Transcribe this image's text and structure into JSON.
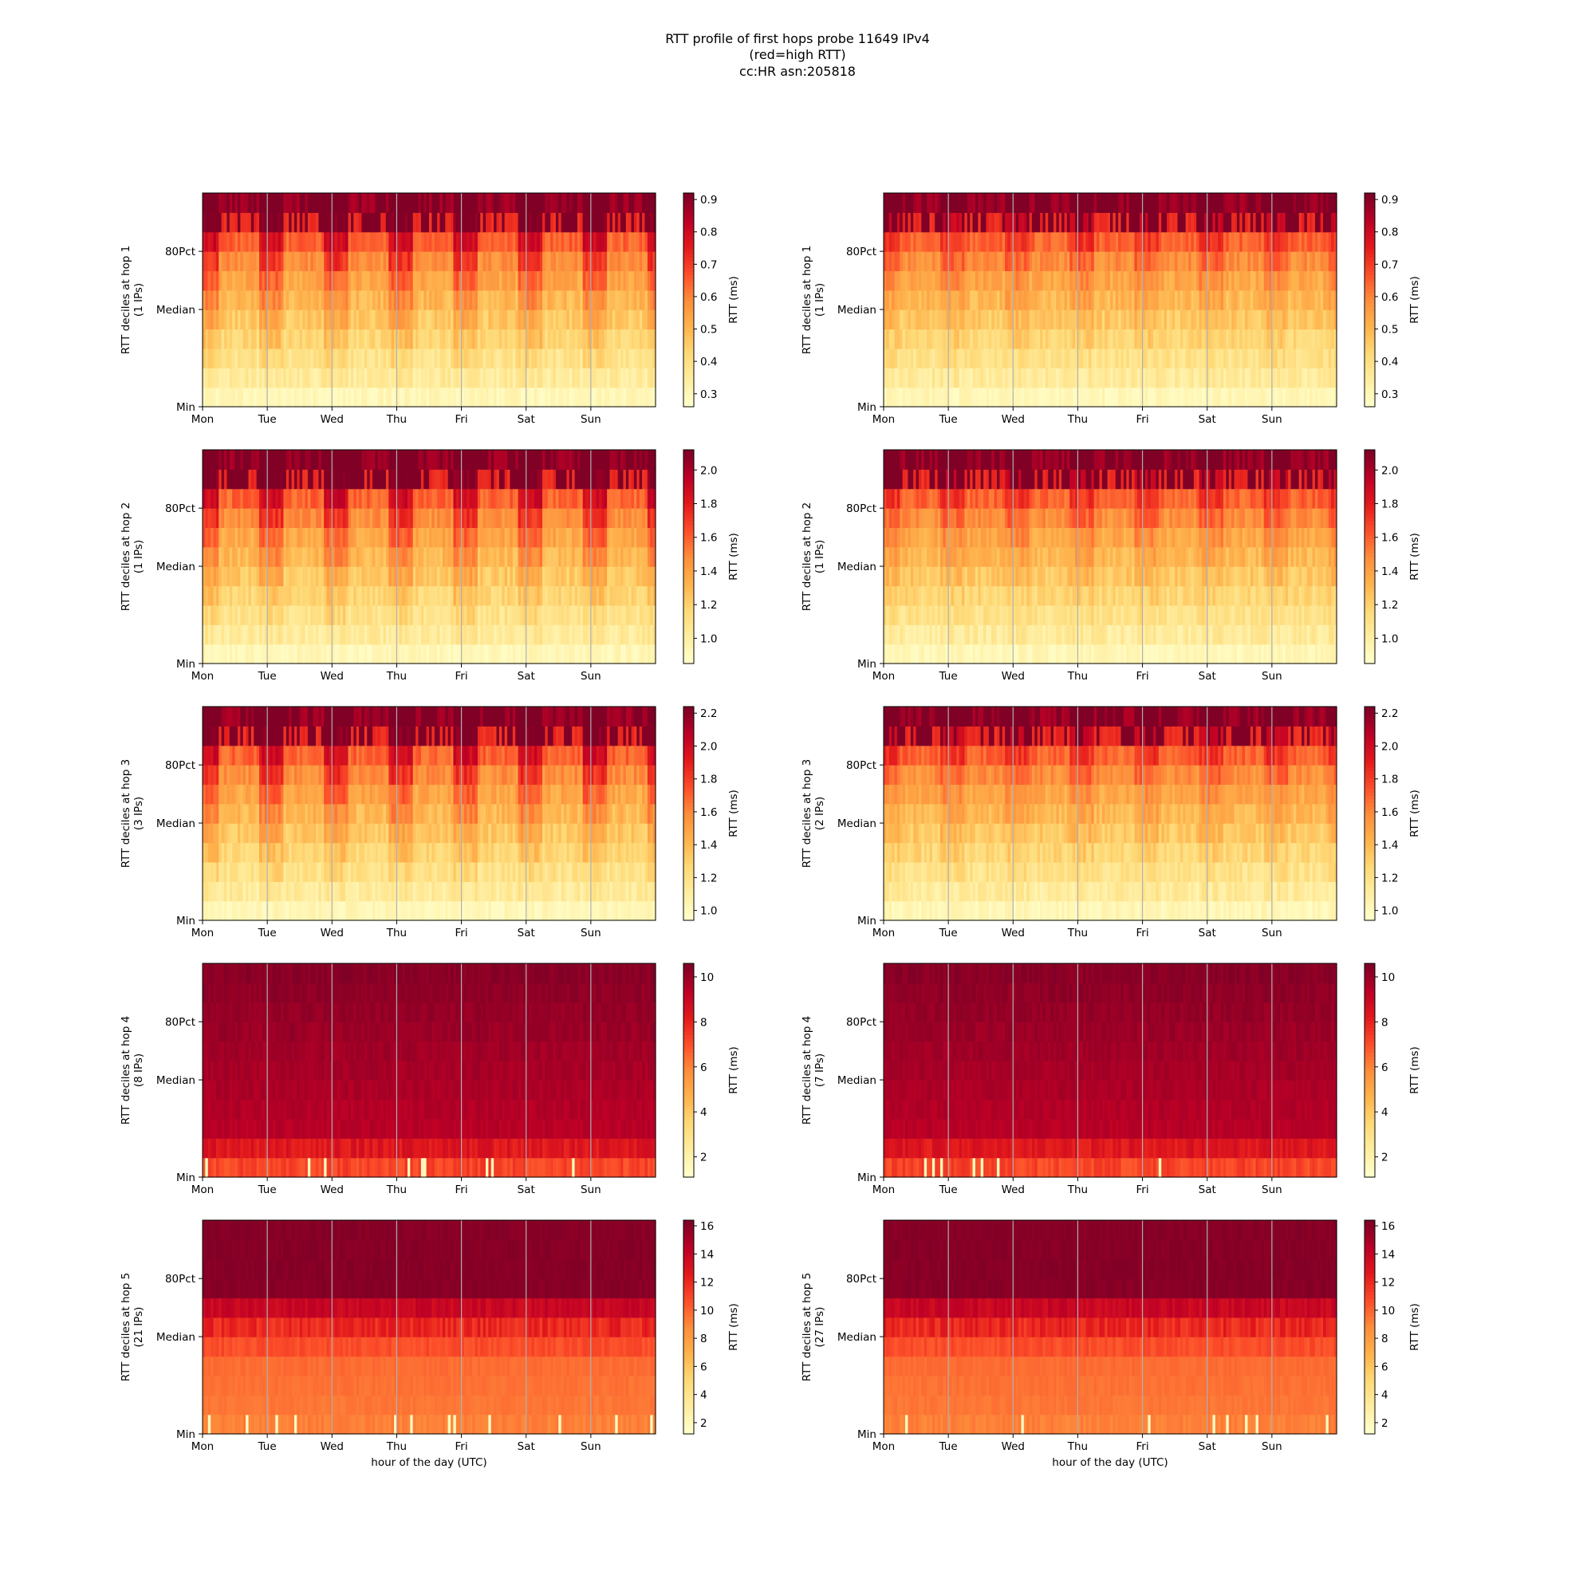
{
  "figure": {
    "title_lines": [
      "RTT profile of first hops probe 11649 IPv4",
      "(red=high RTT)",
      "cc:HR asn:205818"
    ]
  },
  "chart_data": [
    {
      "type": "heatmap",
      "hop": 1,
      "column": "left",
      "ylabel": "RTT deciles at hop 1",
      "ylabel2": "(1 IPs)",
      "xlabel": "",
      "xticks": [
        "Mon",
        "Tue",
        "Wed",
        "Thu",
        "Fri",
        "Sat",
        "Sun"
      ],
      "yticks": [
        "Min",
        "Median",
        "80Pct"
      ],
      "cbar_label": "RTT (ms)",
      "cbar_ticks": [
        "0.3",
        "0.4",
        "0.5",
        "0.6",
        "0.7",
        "0.8",
        "0.9"
      ],
      "vmin": 0.26,
      "vmax": 0.92,
      "pattern": "diurnal"
    },
    {
      "type": "heatmap",
      "hop": 1,
      "column": "right",
      "ylabel": "RTT deciles at hop 1",
      "ylabel2": "(1 IPs)",
      "xlabel": "",
      "xticks": [
        "Mon",
        "Tue",
        "Wed",
        "Thu",
        "Fri",
        "Sat",
        "Sun"
      ],
      "yticks": [
        "Min",
        "Median",
        "80Pct"
      ],
      "cbar_label": "RTT (ms)",
      "cbar_ticks": [
        "0.3",
        "0.4",
        "0.5",
        "0.6",
        "0.7",
        "0.8",
        "0.9"
      ],
      "vmin": 0.26,
      "vmax": 0.92,
      "pattern": "flat"
    },
    {
      "type": "heatmap",
      "hop": 2,
      "column": "left",
      "ylabel": "RTT deciles at hop 2",
      "ylabel2": "(1 IPs)",
      "xlabel": "",
      "xticks": [
        "Mon",
        "Tue",
        "Wed",
        "Thu",
        "Fri",
        "Sat",
        "Sun"
      ],
      "yticks": [
        "Min",
        "Median",
        "80Pct"
      ],
      "cbar_label": "RTT (ms)",
      "cbar_ticks": [
        "1.0",
        "1.2",
        "1.4",
        "1.6",
        "1.8",
        "2.0"
      ],
      "vmin": 0.85,
      "vmax": 2.12,
      "pattern": "diurnal"
    },
    {
      "type": "heatmap",
      "hop": 2,
      "column": "right",
      "ylabel": "RTT deciles at hop 2",
      "ylabel2": "(1 IPs)",
      "xlabel": "",
      "xticks": [
        "Mon",
        "Tue",
        "Wed",
        "Thu",
        "Fri",
        "Sat",
        "Sun"
      ],
      "yticks": [
        "Min",
        "Median",
        "80Pct"
      ],
      "cbar_label": "RTT (ms)",
      "cbar_ticks": [
        "1.0",
        "1.2",
        "1.4",
        "1.6",
        "1.8",
        "2.0"
      ],
      "vmin": 0.85,
      "vmax": 2.12,
      "pattern": "flat"
    },
    {
      "type": "heatmap",
      "hop": 3,
      "column": "left",
      "ylabel": "RTT deciles at hop 3",
      "ylabel2": "(3 IPs)",
      "xlabel": "",
      "xticks": [
        "Mon",
        "Tue",
        "Wed",
        "Thu",
        "Fri",
        "Sat",
        "Sun"
      ],
      "yticks": [
        "Min",
        "Median",
        "80Pct"
      ],
      "cbar_label": "RTT (ms)",
      "cbar_ticks": [
        "1.0",
        "1.2",
        "1.4",
        "1.6",
        "1.8",
        "2.0",
        "2.2"
      ],
      "vmin": 0.94,
      "vmax": 2.24,
      "pattern": "diurnal"
    },
    {
      "type": "heatmap",
      "hop": 3,
      "column": "right",
      "ylabel": "RTT deciles at hop 3",
      "ylabel2": "(2 IPs)",
      "xlabel": "",
      "xticks": [
        "Mon",
        "Tue",
        "Wed",
        "Thu",
        "Fri",
        "Sat",
        "Sun"
      ],
      "yticks": [
        "Min",
        "Median",
        "80Pct"
      ],
      "cbar_label": "RTT (ms)",
      "cbar_ticks": [
        "1.0",
        "1.2",
        "1.4",
        "1.6",
        "1.8",
        "2.0",
        "2.2"
      ],
      "vmin": 0.94,
      "vmax": 2.24,
      "pattern": "flat"
    },
    {
      "type": "heatmap",
      "hop": 4,
      "column": "left",
      "ylabel": "RTT deciles at hop 4",
      "ylabel2": "(8 IPs)",
      "xlabel": "",
      "xticks": [
        "Mon",
        "Tue",
        "Wed",
        "Thu",
        "Fri",
        "Sat",
        "Sun"
      ],
      "yticks": [
        "Min",
        "Median",
        "80Pct"
      ],
      "cbar_label": "RTT (ms)",
      "cbar_ticks": [
        "2",
        "4",
        "6",
        "8",
        "10"
      ],
      "vmin": 1.1,
      "vmax": 10.6,
      "pattern": "dark"
    },
    {
      "type": "heatmap",
      "hop": 4,
      "column": "right",
      "ylabel": "RTT deciles at hop 4",
      "ylabel2": "(7 IPs)",
      "xlabel": "",
      "xticks": [
        "Mon",
        "Tue",
        "Wed",
        "Thu",
        "Fri",
        "Sat",
        "Sun"
      ],
      "yticks": [
        "Min",
        "Median",
        "80Pct"
      ],
      "cbar_label": "RTT (ms)",
      "cbar_ticks": [
        "2",
        "4",
        "6",
        "8",
        "10"
      ],
      "vmin": 1.1,
      "vmax": 10.6,
      "pattern": "dark"
    },
    {
      "type": "heatmap",
      "hop": 5,
      "column": "left",
      "ylabel": "RTT deciles at hop 5",
      "ylabel2": "(21 IPs)",
      "xlabel": "hour of the day (UTC)",
      "xticks": [
        "Mon",
        "Tue",
        "Wed",
        "Thu",
        "Fri",
        "Sat",
        "Sun"
      ],
      "yticks": [
        "Min",
        "Median",
        "80Pct"
      ],
      "cbar_label": "RTT (ms)",
      "cbar_ticks": [
        "2",
        "4",
        "6",
        "8",
        "10",
        "12",
        "14",
        "16"
      ],
      "vmin": 1.2,
      "vmax": 16.4,
      "pattern": "banded"
    },
    {
      "type": "heatmap",
      "hop": 5,
      "column": "right",
      "ylabel": "RTT deciles at hop 5",
      "ylabel2": "(27 IPs)",
      "xlabel": "hour of the day (UTC)",
      "xticks": [
        "Mon",
        "Tue",
        "Wed",
        "Thu",
        "Fri",
        "Sat",
        "Sun"
      ],
      "yticks": [
        "Min",
        "Median",
        "80Pct"
      ],
      "cbar_label": "RTT (ms)",
      "cbar_ticks": [
        "2",
        "4",
        "6",
        "8",
        "10",
        "12",
        "14",
        "16"
      ],
      "vmin": 1.2,
      "vmax": 16.4,
      "pattern": "banded"
    }
  ]
}
